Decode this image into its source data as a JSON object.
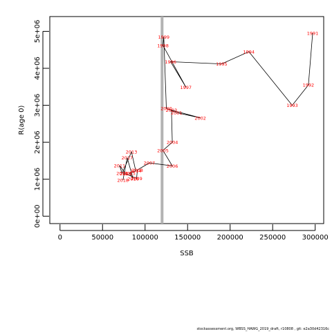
{
  "chart_data": {
    "type": "line",
    "title": "",
    "xlabel": "SSB",
    "ylabel": "R(age 0)",
    "xlim": [
      -12000,
      310000
    ],
    "ylim": [
      -200000,
      5400000
    ],
    "xticks": [
      {
        "value": 0,
        "label": "0"
      },
      {
        "value": 50000,
        "label": "50000"
      },
      {
        "value": 100000,
        "label": "100000"
      },
      {
        "value": 150000,
        "label": "150000"
      },
      {
        "value": 200000,
        "label": "200000"
      },
      {
        "value": 250000,
        "label": "250000"
      },
      {
        "value": 300000,
        "label": "300000"
      }
    ],
    "yticks": [
      {
        "value": 0,
        "label": "0e+00"
      },
      {
        "value": 1000000,
        "label": "1e+06"
      },
      {
        "value": 2000000,
        "label": "2e+06"
      },
      {
        "value": 3000000,
        "label": "3e+06"
      },
      {
        "value": 4000000,
        "label": "4e+06"
      },
      {
        "value": 5000000,
        "label": "5e+06"
      }
    ],
    "reference_line": {
      "x": 120000,
      "color": "#b3b3b3"
    },
    "grid": false,
    "line_color": "#000000",
    "label_color": "#ff0000",
    "points": [
      {
        "year": "1991",
        "ssb": 297000,
        "r": 4950000
      },
      {
        "year": "1992",
        "ssb": 292000,
        "r": 3550000
      },
      {
        "year": "1993",
        "ssb": 273000,
        "r": 3000000
      },
      {
        "year": "1994",
        "ssb": 222000,
        "r": 4450000
      },
      {
        "year": "1995",
        "ssb": 190000,
        "r": 4120000
      },
      {
        "year": "1996",
        "ssb": 130000,
        "r": 4180000
      },
      {
        "year": "1997",
        "ssb": 148000,
        "r": 3490000
      },
      {
        "year": "1998",
        "ssb": 121000,
        "r": 4620000
      },
      {
        "year": "1999",
        "ssb": 122000,
        "r": 4850000
      },
      {
        "year": "2000",
        "ssb": 125000,
        "r": 2920000
      },
      {
        "year": "2001",
        "ssb": 137000,
        "r": 2800000
      },
      {
        "year": "2002",
        "ssb": 165000,
        "r": 2660000
      },
      {
        "year": "2003",
        "ssb": 131000,
        "r": 2870000
      },
      {
        "year": "2004",
        "ssb": 132000,
        "r": 2000000
      },
      {
        "year": "2005",
        "ssb": 121000,
        "r": 1780000
      },
      {
        "year": "2006",
        "ssb": 132000,
        "r": 1360000
      },
      {
        "year": "2007",
        "ssb": 105000,
        "r": 1440000
      },
      {
        "year": "2008",
        "ssb": 91000,
        "r": 1250000
      },
      {
        "year": "2009",
        "ssb": 90000,
        "r": 1020000
      },
      {
        "year": "2010",
        "ssb": 77000,
        "r": 1150000
      },
      {
        "year": "2011",
        "ssb": 70000,
        "r": 1370000
      },
      {
        "year": "2012",
        "ssb": 73000,
        "r": 1160000
      },
      {
        "year": "2013",
        "ssb": 84000,
        "r": 1740000
      },
      {
        "year": "2014",
        "ssb": 89000,
        "r": 1230000
      },
      {
        "year": "2015",
        "ssb": 82000,
        "r": 1160000
      },
      {
        "year": "2016",
        "ssb": 86000,
        "r": 1010000
      },
      {
        "year": "2017",
        "ssb": 79000,
        "r": 1580000
      },
      {
        "year": "2018",
        "ssb": 74000,
        "r": 980000
      }
    ]
  },
  "footer": "stockassessment.org,  WBSS_HAWG_2019_draft,  r10808 ,  git: e2a30d42316c"
}
